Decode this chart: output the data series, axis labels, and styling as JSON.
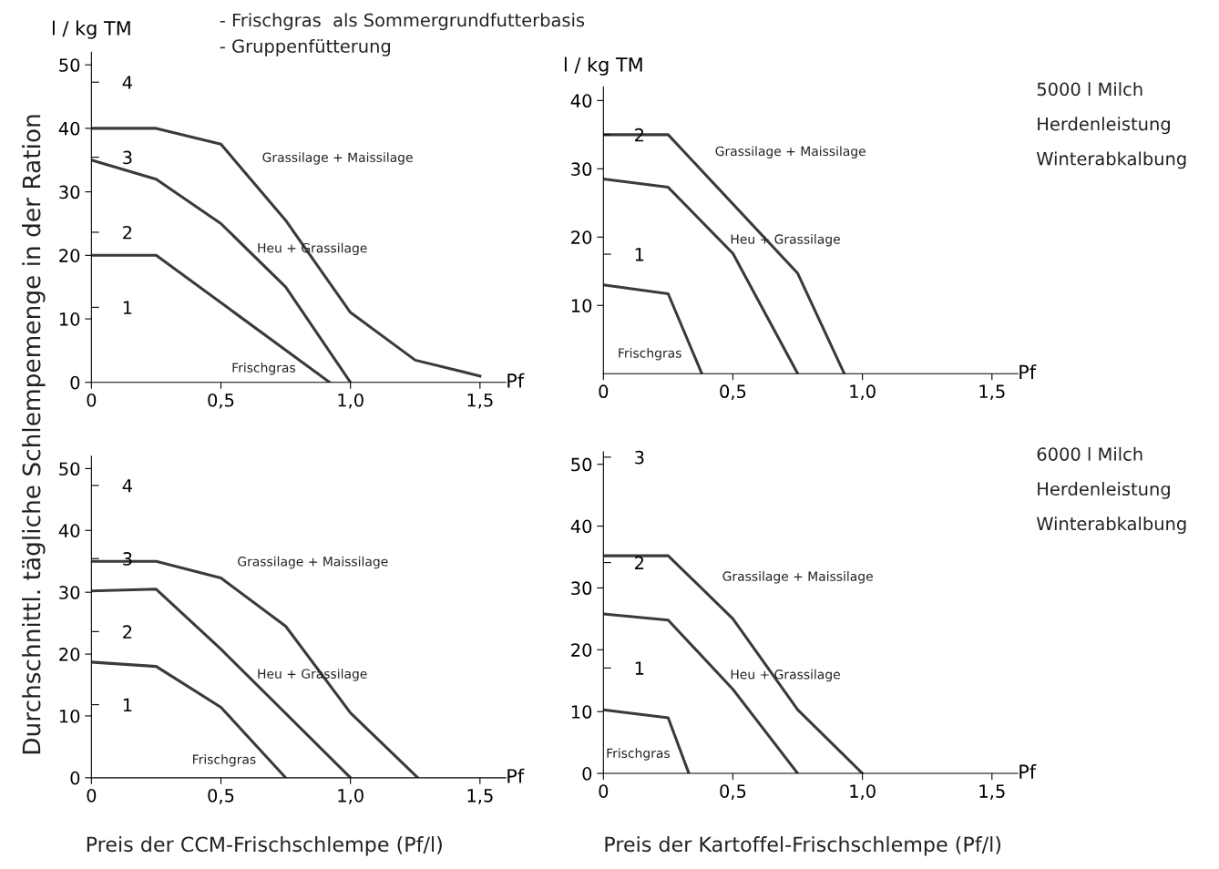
{
  "chart_data": [
    {
      "type": "line",
      "ylabel": "l / kg TM",
      "xlabel": "Pf",
      "annotations": [
        "Durchschnittl. tägliche Schlempemenge in der Ration",
        "- Frischgras  als Sommergrundfutterbasis",
        "- Gruppenfütterung"
      ],
      "xlim": [
        0,
        1.6
      ],
      "xticks": [
        {
          "value": 0,
          "label": "0"
        },
        {
          "value": 0.5,
          "label": "0,5"
        },
        {
          "value": 1.0,
          "label": "1,0"
        },
        {
          "value": 1.5,
          "label": "1,5"
        }
      ],
      "ylim": [
        0,
        52
      ],
      "yticks": [
        0,
        10,
        20,
        30,
        40,
        50
      ],
      "y2lim": [
        0,
        4.4
      ],
      "y2ticks": [
        1,
        2,
        3,
        4
      ],
      "grid": false,
      "legend": false,
      "marker": "none",
      "line_style": "solid",
      "series": [
        {
          "name": "Grassilage + Maissilage",
          "color": "#3a3a3a",
          "x": [
            0,
            0.25,
            0.5,
            0.75,
            1.0,
            1.25,
            1.5
          ],
          "values": [
            40,
            40,
            37.5,
            25.5,
            11,
            3.5,
            1
          ]
        },
        {
          "name": "Heu + Grassilage",
          "color": "#3a3a3a",
          "x": [
            0,
            0.25,
            0.5,
            0.75,
            1.0
          ],
          "values": [
            35,
            32,
            25,
            15,
            0
          ]
        },
        {
          "name": "Frischgras",
          "color": "#3a3a3a",
          "x": [
            0,
            0.25,
            0.92
          ],
          "values": [
            20,
            20,
            0
          ]
        }
      ]
    },
    {
      "type": "line",
      "ylabel": "l / kg TM",
      "xlabel": "Pf",
      "annotations": [
        "5000 l Milch",
        "Herdenleistung",
        "Winterabkalbung"
      ],
      "xlim": [
        0,
        1.6
      ],
      "xticks": [
        {
          "value": 0,
          "label": "0"
        },
        {
          "value": 0.5,
          "label": "0,5"
        },
        {
          "value": 1.0,
          "label": "1,0"
        },
        {
          "value": 1.5,
          "label": "1,5"
        }
      ],
      "ylim": [
        0,
        42
      ],
      "yticks": [
        10,
        20,
        30,
        40
      ],
      "y2lim": [
        0,
        2.4
      ],
      "y2ticks": [
        1,
        2
      ],
      "grid": false,
      "legend": false,
      "marker": "none",
      "line_style": "solid",
      "series": [
        {
          "name": "Grassilage + Maissilage",
          "color": "#3a3a3a",
          "x": [
            0,
            0.25,
            0.75,
            0.93
          ],
          "values": [
            35,
            35,
            14.7,
            0
          ]
        },
        {
          "name": "Heu + Grassilage",
          "color": "#3a3a3a",
          "x": [
            0,
            0.25,
            0.5,
            0.75
          ],
          "values": [
            28.5,
            27.3,
            17.6,
            0
          ]
        },
        {
          "name": "Frischgras",
          "color": "#3a3a3a",
          "x": [
            0,
            0.25,
            0.38
          ],
          "values": [
            13,
            11.7,
            0
          ]
        }
      ]
    },
    {
      "type": "line",
      "xlabel": "Pf",
      "annotations": [
        "Preis der CCM-Frischschlempe (Pf/l)"
      ],
      "xlim": [
        0,
        1.6
      ],
      "xticks": [
        {
          "value": 0,
          "label": "0"
        },
        {
          "value": 0.5,
          "label": "0,5"
        },
        {
          "value": 1.0,
          "label": "1,0"
        },
        {
          "value": 1.5,
          "label": "1,5"
        }
      ],
      "ylim": [
        0,
        52
      ],
      "yticks": [
        0,
        10,
        20,
        30,
        40,
        50
      ],
      "y2lim": [
        0,
        4.4
      ],
      "y2ticks": [
        1,
        2,
        3,
        4
      ],
      "grid": false,
      "legend": false,
      "marker": "none",
      "line_style": "solid",
      "series": [
        {
          "name": "Grassilage + Maissilage",
          "color": "#3a3a3a",
          "x": [
            0,
            0.25,
            0.5,
            0.75,
            1.0,
            1.26
          ],
          "values": [
            35,
            35,
            32.3,
            24.5,
            10.5,
            0
          ]
        },
        {
          "name": "Heu + Grassilage",
          "color": "#3a3a3a",
          "x": [
            0,
            0.25,
            0.5,
            1.0
          ],
          "values": [
            30.2,
            30.5,
            20.8,
            0
          ]
        },
        {
          "name": "Frischgras",
          "color": "#3a3a3a",
          "x": [
            0,
            0.25,
            0.5,
            0.75
          ],
          "values": [
            18.7,
            18,
            11.4,
            0
          ]
        }
      ]
    },
    {
      "type": "line",
      "xlabel": "Pf",
      "annotations": [
        "6000 l Milch",
        "Herdenleistung",
        "Winterabkalbung",
        "Preis der Kartoffel-Frischschlempe (Pf/l)"
      ],
      "xlim": [
        0,
        1.6
      ],
      "xticks": [
        {
          "value": 0,
          "label": "0"
        },
        {
          "value": 0.5,
          "label": "0,5"
        },
        {
          "value": 1.0,
          "label": "1,0"
        },
        {
          "value": 1.5,
          "label": "1,5"
        }
      ],
      "ylim": [
        0,
        52
      ],
      "yticks": [
        0,
        10,
        20,
        30,
        40,
        50
      ],
      "y2lim": [
        0,
        3.05
      ],
      "y2ticks": [
        1,
        2,
        3
      ],
      "grid": false,
      "legend": false,
      "marker": "none",
      "line_style": "solid",
      "series": [
        {
          "name": "Grassilage + Maissilage",
          "color": "#3a3a3a",
          "x": [
            0,
            0.25,
            0.5,
            0.75,
            1.0
          ],
          "values": [
            35.2,
            35.2,
            25,
            10.3,
            0
          ]
        },
        {
          "name": "Heu + Grassilage",
          "color": "#3a3a3a",
          "x": [
            0,
            0.25,
            0.5,
            0.75
          ],
          "values": [
            25.8,
            24.8,
            13.6,
            0
          ]
        },
        {
          "name": "Frischgras",
          "color": "#3a3a3a",
          "x": [
            0,
            0.25,
            0.33
          ],
          "values": [
            10.3,
            9,
            0
          ]
        }
      ]
    }
  ]
}
